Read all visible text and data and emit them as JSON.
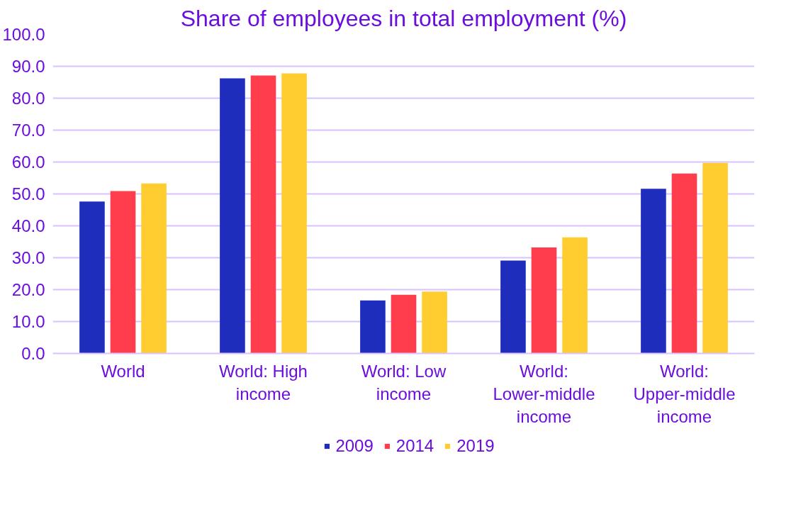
{
  "chart_data": {
    "type": "bar",
    "title": "Share of employees in total employment (%)",
    "categories": [
      "World",
      "World: High income",
      "World: Low income",
      "World: Lower-middle income",
      "World: Upper-middle income"
    ],
    "series": [
      {
        "name": "2009",
        "color": "#1f2dbd",
        "values": [
          47.6,
          86.2,
          16.6,
          29.1,
          51.6
        ]
      },
      {
        "name": "2014",
        "color": "#ff3d4d",
        "values": [
          50.9,
          87.1,
          18.4,
          33.2,
          56.4
        ]
      },
      {
        "name": "2019",
        "color": "#ffcd30",
        "values": [
          53.3,
          87.8,
          19.4,
          36.4,
          59.7
        ]
      }
    ],
    "ylim": [
      0,
      100
    ],
    "yticks": [
      {
        "value": 0,
        "label": "0.0"
      },
      {
        "value": 10,
        "label": "10.0"
      },
      {
        "value": 20,
        "label": "20.0"
      },
      {
        "value": 30,
        "label": "30.0"
      },
      {
        "value": 40,
        "label": "40.0"
      },
      {
        "value": 50,
        "label": "50.0"
      },
      {
        "value": 60,
        "label": "60.0"
      },
      {
        "value": 70,
        "label": "70.0"
      },
      {
        "value": 80,
        "label": "80.0"
      },
      {
        "value": 90,
        "label": "90.0"
      },
      {
        "value": 100,
        "label": "100.0"
      }
    ],
    "grid": "y",
    "legend": "bottom"
  }
}
